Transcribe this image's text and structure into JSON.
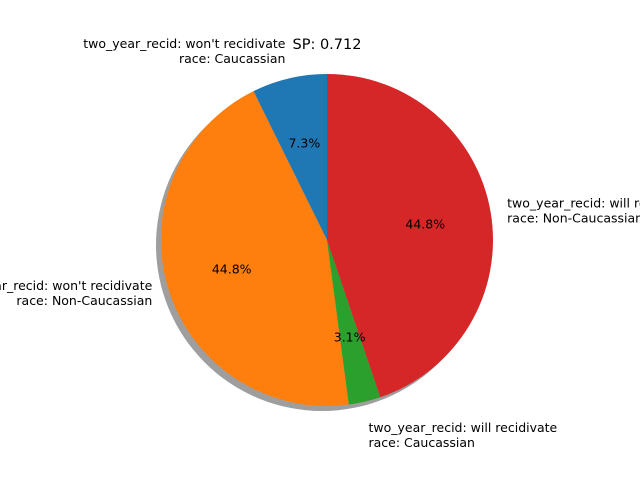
{
  "chart_data": {
    "type": "pie",
    "title": "SP: 0.712",
    "start_angle_deg": 90,
    "direction": "counterclockwise",
    "shadow": true,
    "slices": [
      {
        "label_lines": [
          "two_year_recid: won't recidivate",
          "race: Caucassian"
        ],
        "value": 7.3,
        "pct_label": "7.3%",
        "color": "#1f77b4"
      },
      {
        "label_lines": [
          "two_year_recid: won't recidivate",
          "race: Non-Caucassian"
        ],
        "value": 44.8,
        "pct_label": "44.8%",
        "color": "#ff7f0e"
      },
      {
        "label_lines": [
          "two_year_recid: will recidivate",
          "race: Caucassian"
        ],
        "value": 3.1,
        "pct_label": "3.1%",
        "color": "#2ca02c"
      },
      {
        "label_lines": [
          "two_year_recid: will recidivate",
          "race: Non-Caucassian"
        ],
        "value": 44.8,
        "pct_label": "44.8%",
        "color": "#d62728"
      }
    ]
  }
}
